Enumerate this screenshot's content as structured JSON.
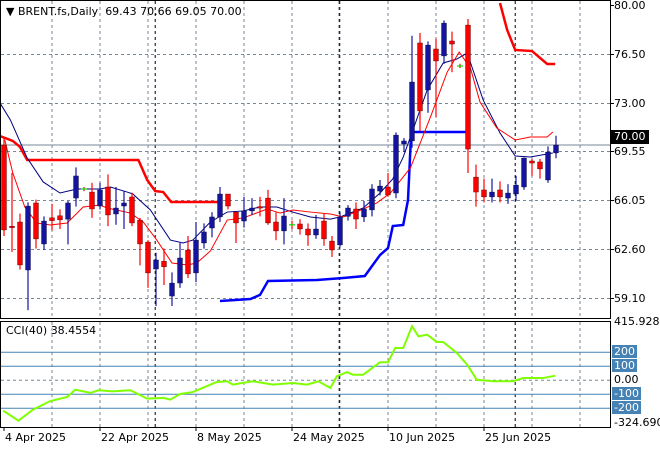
{
  "header": {
    "symbol_icon": "triangle-down-icon",
    "symbol": "BRENT.fs,Daily",
    "ohlc": "69.43 70.66 69.05 70.00"
  },
  "indicator": {
    "label": "CCI(40)",
    "value": "38.4554",
    "levels": [
      200,
      100,
      0,
      -100,
      -200
    ],
    "level_labels": [
      "200",
      "100",
      "0.00",
      "-100",
      "-200"
    ],
    "max_label": "415.928",
    "min_label": "-324.690"
  },
  "price_axis": {
    "ticks": [
      80.0,
      76.5,
      73.0,
      69.55,
      66.05,
      62.6,
      59.1
    ],
    "tick_labels": [
      "80.00",
      "76.50",
      "73.00",
      "69.55",
      "66.05",
      "62.60",
      "59.10"
    ],
    "current_price": 70.0,
    "current_price_label": "70.00"
  },
  "time_axis": {
    "labels": [
      {
        "bar": 0,
        "text": "4 Apr 2025"
      },
      {
        "bar": 12,
        "text": "22 Apr 2025"
      },
      {
        "bar": 24,
        "text": "8 May 2025"
      },
      {
        "bar": 36,
        "text": "24 May 2025"
      },
      {
        "bar": 48,
        "text": "10 Jun 2025"
      },
      {
        "bar": 60,
        "text": "25 Jun 2025"
      }
    ],
    "separators_bar": [
      18.9,
      41.9,
      63.9
    ]
  },
  "colors": {
    "bull": "#1414a0",
    "bear": "#ff0000",
    "doji": "#00e000",
    "ma_slow": "#000080",
    "ma_fast": "#ff0000",
    "upper_band": "#ff0000",
    "lower_band": "#0000ff",
    "cci": "#7fff00",
    "level_line": "#4682b4",
    "grid": "#778899"
  },
  "chart_data": {
    "type": "candlestick",
    "ylim": [
      58.5,
      80.3
    ],
    "candles_ohlc": [
      [
        70.0,
        70.5,
        63.5,
        63.93
      ],
      [
        64.2,
        68.0,
        62.36,
        64.1
      ],
      [
        64.5,
        65.1,
        61.1,
        61.43
      ],
      [
        61.07,
        65.9,
        58.2,
        65.64
      ],
      [
        65.86,
        66.1,
        62.6,
        63.29
      ],
      [
        62.93,
        64.9,
        62.5,
        64.57
      ],
      [
        64.8,
        65.8,
        63.9,
        64.6
      ],
      [
        64.95,
        65.4,
        64.0,
        64.65
      ],
      [
        64.7,
        66.0,
        62.9,
        65.86
      ],
      [
        66.21,
        68.4,
        65.6,
        67.79
      ],
      [
        66.86,
        67.0,
        66.7,
        66.86
      ],
      [
        66.64,
        67.3,
        64.8,
        65.43
      ],
      [
        65.64,
        67.3,
        65.4,
        66.79
      ],
      [
        67.0,
        67.9,
        64.2,
        65.0
      ],
      [
        65.07,
        67.0,
        64.3,
        65.5
      ],
      [
        65.64,
        66.7,
        64.0,
        65.86
      ],
      [
        66.29,
        66.6,
        64.2,
        64.43
      ],
      [
        64.64,
        64.8,
        61.4,
        62.93
      ],
      [
        63.07,
        63.2,
        59.8,
        60.86
      ],
      [
        61.14,
        62.3,
        58.5,
        61.79
      ],
      [
        61.7,
        62.6,
        60.0,
        61.3
      ],
      [
        59.21,
        60.9,
        58.5,
        60.14
      ],
      [
        60.14,
        63.0,
        59.8,
        61.93
      ],
      [
        62.5,
        63.5,
        60.5,
        60.79
      ],
      [
        60.86,
        64.5,
        60.2,
        63.21
      ],
      [
        63.0,
        64.4,
        62.6,
        63.79
      ],
      [
        64.07,
        65.2,
        63.4,
        64.86
      ],
      [
        64.86,
        67.0,
        64.5,
        66.5
      ],
      [
        66.5,
        66.5,
        65.4,
        65.64
      ],
      [
        65.21,
        65.2,
        63.0,
        64.43
      ],
      [
        64.57,
        66.3,
        64.1,
        65.29
      ],
      [
        65.29,
        66.2,
        65.0,
        65.5
      ],
      [
        65.6,
        66.3,
        64.9,
        65.5
      ],
      [
        66.21,
        66.8,
        64.3,
        64.43
      ],
      [
        64.5,
        65.2,
        63.2,
        63.86
      ],
      [
        63.86,
        66.2,
        62.9,
        64.93
      ],
      [
        64.3,
        64.6,
        64.0,
        64.3
      ],
      [
        64.36,
        64.7,
        63.6,
        64.0
      ],
      [
        64.0,
        64.4,
        62.8,
        63.57
      ],
      [
        63.57,
        65.0,
        63.3,
        64.0
      ],
      [
        64.57,
        65.1,
        62.8,
        63.29
      ],
      [
        63.14,
        63.5,
        62.0,
        62.5
      ],
      [
        62.86,
        65.2,
        62.7,
        64.86
      ],
      [
        64.9,
        65.7,
        64.6,
        65.5
      ],
      [
        65.43,
        65.9,
        64.0,
        64.71
      ],
      [
        64.86,
        66.0,
        64.5,
        65.43
      ],
      [
        65.36,
        67.2,
        64.9,
        66.86
      ],
      [
        66.71,
        67.5,
        66.4,
        67.07
      ],
      [
        67.0,
        68.0,
        66.3,
        66.43
      ],
      [
        66.57,
        70.9,
        66.2,
        70.71
      ],
      [
        70.07,
        70.5,
        69.5,
        70.29
      ],
      [
        70.29,
        77.8,
        69.8,
        74.5
      ],
      [
        77.29,
        78.0,
        71.0,
        72.43
      ],
      [
        73.93,
        77.4,
        72.3,
        77.14
      ],
      [
        76.86,
        77.6,
        72.0,
        76.0
      ],
      [
        76.36,
        78.9,
        75.8,
        78.71
      ],
      [
        77.43,
        78.1,
        75.2,
        77.21
      ],
      [
        75.64,
        75.8,
        75.5,
        75.64
      ],
      [
        78.57,
        79.0,
        68.0,
        69.71
      ],
      [
        67.71,
        68.6,
        65.6,
        66.64
      ],
      [
        66.79,
        67.6,
        65.9,
        66.29
      ],
      [
        66.29,
        67.6,
        65.9,
        66.64
      ],
      [
        66.79,
        67.4,
        65.9,
        66.29
      ],
      [
        66.21,
        67.2,
        65.8,
        66.57
      ],
      [
        66.5,
        67.8,
        66.0,
        67.14
      ],
      [
        67.0,
        69.1,
        66.8,
        69.07
      ],
      [
        68.86,
        69.0,
        67.8,
        68.71
      ],
      [
        68.79,
        69.0,
        67.6,
        68.29
      ],
      [
        67.5,
        69.9,
        67.3,
        69.5
      ],
      [
        69.43,
        70.66,
        69.05,
        70.0
      ]
    ],
    "ma_slow": [
      [
        -0.5,
        73.0
      ],
      [
        0.8,
        71.79
      ],
      [
        2.9,
        69.07
      ],
      [
        4.9,
        67.36
      ],
      [
        7,
        66.57
      ],
      [
        9.1,
        66.86
      ],
      [
        12,
        66.86
      ],
      [
        13.3,
        67.0
      ],
      [
        15.4,
        66.64
      ],
      [
        16.1,
        66.5
      ],
      [
        18.3,
        65.36
      ],
      [
        20.8,
        63.21
      ],
      [
        22.4,
        63.0
      ],
      [
        23.6,
        63.21
      ],
      [
        25.8,
        64.5
      ],
      [
        27.9,
        65.21
      ],
      [
        29.9,
        65.29
      ],
      [
        32,
        65.57
      ],
      [
        34.1,
        65.57
      ],
      [
        36.1,
        65.21
      ],
      [
        38.3,
        64.86
      ],
      [
        40.8,
        64.71
      ],
      [
        42,
        64.86
      ],
      [
        44.9,
        65.5
      ],
      [
        47,
        66.57
      ],
      [
        48.6,
        67.57
      ],
      [
        49.9,
        69.14
      ],
      [
        50.8,
        70.57
      ],
      [
        52.9,
        73.93
      ],
      [
        54.9,
        75.86
      ],
      [
        56.6,
        76.14
      ],
      [
        57.9,
        76.57
      ],
      [
        59.9,
        73.21
      ],
      [
        62,
        70.86
      ],
      [
        63.9,
        69.21
      ],
      [
        65.8,
        69.14
      ],
      [
        68.6,
        69.43
      ]
    ],
    "ma_fast": [
      [
        0.1,
        70.36
      ],
      [
        1.1,
        68.0
      ],
      [
        2.6,
        65.57
      ],
      [
        4.1,
        64.43
      ],
      [
        5.8,
        64.29
      ],
      [
        7.9,
        64.43
      ],
      [
        9.9,
        65.57
      ],
      [
        12,
        65.71
      ],
      [
        12.9,
        65.5
      ],
      [
        15.8,
        65.14
      ],
      [
        17.4,
        64.5
      ],
      [
        19.1,
        63.21
      ],
      [
        21,
        61.57
      ],
      [
        22.9,
        61.43
      ],
      [
        24.1,
        61.57
      ],
      [
        25.8,
        62.43
      ],
      [
        27.9,
        64.64
      ],
      [
        29.9,
        64.79
      ],
      [
        32.9,
        65.43
      ],
      [
        34.5,
        65.14
      ],
      [
        36.1,
        65.36
      ],
      [
        38.3,
        65.21
      ],
      [
        40.8,
        65.07
      ],
      [
        42.4,
        64.86
      ],
      [
        44.9,
        65.43
      ],
      [
        46.6,
        65.86
      ],
      [
        48.3,
        66.57
      ],
      [
        49.5,
        67.43
      ],
      [
        50.8,
        68.36
      ],
      [
        53.4,
        72.14
      ],
      [
        55.4,
        75.21
      ],
      [
        56.9,
        76.64
      ],
      [
        58.3,
        75.5
      ],
      [
        59.5,
        73.07
      ],
      [
        61.6,
        71.21
      ],
      [
        63.9,
        70.36
      ],
      [
        65.8,
        70.57
      ],
      [
        67.9,
        70.57
      ],
      [
        68.6,
        70.93
      ]
    ],
    "upper_band": [
      [
        [
          -0.5,
          70.64
        ],
        [
          1.1,
          70.29
        ],
        [
          2,
          69.86
        ],
        [
          2.9,
          68.93
        ],
        [
          16.8,
          68.93
        ],
        [
          17.9,
          67.5
        ],
        [
          18.9,
          66.71
        ],
        [
          19.9,
          66.64
        ],
        [
          20.9,
          65.93
        ],
        [
          27,
          65.93
        ]
      ],
      [
        [
          62,
          80.14
        ],
        [
          62.9,
          78.21
        ],
        [
          63.9,
          76.79
        ],
        [
          66,
          76.71
        ],
        [
          67.9,
          75.79
        ],
        [
          68.9,
          75.79
        ]
      ]
    ],
    "lower_band": [
      [
        27,
        58.86
      ],
      [
        30.8,
        59.0
      ],
      [
        32,
        59.29
      ],
      [
        33,
        60.29
      ],
      [
        39.1,
        60.36
      ],
      [
        42.4,
        60.5
      ],
      [
        45.1,
        60.64
      ],
      [
        47,
        62.14
      ],
      [
        48,
        62.64
      ],
      [
        48.6,
        64.21
      ],
      [
        49.9,
        64.29
      ],
      [
        50.5,
        66.07
      ],
      [
        50.9,
        70.93
      ],
      [
        57.9,
        70.93
      ]
    ],
    "cci": [
      [
        -0.1,
        -217
      ],
      [
        1.8,
        -288
      ],
      [
        3.6,
        -210
      ],
      [
        5.8,
        -148
      ],
      [
        7.9,
        -119
      ],
      [
        8.9,
        -67
      ],
      [
        10.8,
        -90
      ],
      [
        11.8,
        -71
      ],
      [
        13.6,
        -79
      ],
      [
        15.8,
        -71
      ],
      [
        17.9,
        -131
      ],
      [
        19.9,
        -126
      ],
      [
        20.8,
        -138
      ],
      [
        22,
        -98
      ],
      [
        23.6,
        -84
      ],
      [
        26.6,
        -12
      ],
      [
        27.9,
        -7
      ],
      [
        28.6,
        -31
      ],
      [
        31.1,
        -7
      ],
      [
        33.6,
        -31
      ],
      [
        36.1,
        -19
      ],
      [
        37.9,
        -31
      ],
      [
        39.3,
        -7
      ],
      [
        40.8,
        -55
      ],
      [
        41.6,
        29
      ],
      [
        42.9,
        59
      ],
      [
        43.6,
        40
      ],
      [
        44.9,
        40
      ],
      [
        47,
        129
      ],
      [
        48,
        129
      ],
      [
        48.9,
        231
      ],
      [
        49.9,
        231
      ],
      [
        51,
        386
      ],
      [
        51.8,
        314
      ],
      [
        52.9,
        326
      ],
      [
        54.1,
        274
      ],
      [
        54.9,
        274
      ],
      [
        56.6,
        195
      ],
      [
        57.9,
        111
      ],
      [
        59.1,
        4
      ],
      [
        61.1,
        -7
      ],
      [
        63.6,
        -7
      ],
      [
        64.9,
        16
      ],
      [
        67.4,
        16
      ],
      [
        68.9,
        33
      ]
    ],
    "cci_ylim": [
      -324.69,
      415.928
    ]
  }
}
